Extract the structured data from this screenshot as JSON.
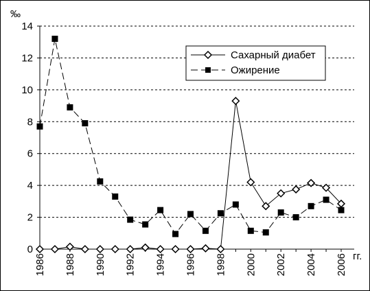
{
  "chart_data": {
    "type": "line",
    "ylabel": "‰",
    "xlabel": "гг.",
    "ylim": [
      0,
      14
    ],
    "y_ticks": [
      0,
      2,
      4,
      6,
      8,
      10,
      12,
      14
    ],
    "x_ticks": [
      "1986",
      "1988",
      "1990",
      "1992",
      "1994",
      "1996",
      "1998",
      "2000",
      "2002",
      "2004",
      "2006"
    ],
    "x": [
      1986,
      1987,
      1988,
      1989,
      1990,
      1991,
      1992,
      1993,
      1994,
      1995,
      1996,
      1997,
      1998,
      1999,
      2000,
      2001,
      2002,
      2003,
      2004,
      2005,
      2006
    ],
    "grid": "horizontal dashed",
    "legend_position": "top-right",
    "series": [
      {
        "name": "Сахарный диабет",
        "marker": "open-diamond",
        "line_style": "solid",
        "values": [
          0,
          0,
          0.15,
          0,
          0,
          0,
          0,
          0.1,
          0,
          0,
          0,
          0.05,
          0,
          9.3,
          4.2,
          2.7,
          3.5,
          3.75,
          4.15,
          3.85,
          2.85
        ]
      },
      {
        "name": "Ожирение",
        "marker": "filled-square",
        "line_style": "dashed",
        "values": [
          7.7,
          13.2,
          8.9,
          7.9,
          4.25,
          3.3,
          1.85,
          1.55,
          2.45,
          0.95,
          2.2,
          1.15,
          2.25,
          2.8,
          1.15,
          1.05,
          2.3,
          2.0,
          2.7,
          3.1,
          2.45
        ]
      }
    ]
  }
}
